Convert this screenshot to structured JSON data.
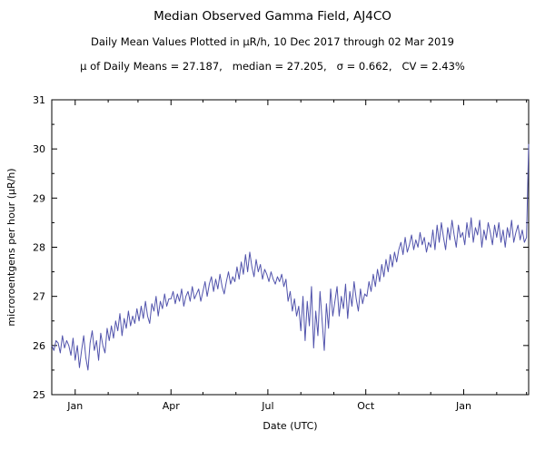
{
  "chart": {
    "title": "Median Observed Gamma Field, AJ4CO",
    "subtitle": "Daily Mean Values Plotted in μR/h, 10 Dec 2017 through 02 Mar 2019",
    "stats": "μ of Daily Means = 27.187,   median = 27.205,   σ = 0.662,   CV = 2.43%"
  },
  "chart_data": {
    "type": "line",
    "title": "Median Observed Gamma Field, AJ4CO",
    "subtitle": "Daily Mean Values Plotted in μR/h, 10 Dec 2017 through 02 Mar 2019",
    "stats_line": "μ of Daily Means = 27.187,   median = 27.205,   σ = 0.662,   CV = 2.43%",
    "mean": 27.187,
    "median": 27.205,
    "sigma": 0.662,
    "cv_percent": 2.43,
    "xlabel": "Date (UTC)",
    "ylabel": "microroentgens per hour (μR/h)",
    "ylim": [
      25,
      31
    ],
    "y_ticks": [
      25,
      26,
      27,
      28,
      29,
      30,
      31
    ],
    "x_start": "10 Dec 2017",
    "x_end": "02 Mar 2019",
    "total_days": 448,
    "sample_interval_days": 2,
    "x_major_ticks": [
      {
        "label": "Jan",
        "day": 22
      },
      {
        "label": "Apr",
        "day": 112
      },
      {
        "label": "Jul",
        "day": 203
      },
      {
        "label": "Oct",
        "day": 295
      },
      {
        "label": "Jan",
        "day": 387
      }
    ],
    "x_minor_tick_days": [
      53,
      81,
      142,
      173,
      234,
      265,
      326,
      356,
      418,
      446
    ],
    "line_color": "#5153ac",
    "grid": false,
    "legend": "none",
    "values": [
      26.0,
      25.9,
      26.1,
      26.05,
      25.85,
      26.2,
      25.95,
      26.1,
      26.0,
      25.8,
      26.15,
      25.7,
      26.0,
      25.55,
      25.9,
      26.2,
      25.75,
      25.5,
      26.05,
      26.3,
      25.9,
      26.1,
      25.7,
      26.25,
      26.0,
      25.85,
      26.35,
      26.1,
      26.4,
      26.15,
      26.5,
      26.3,
      26.65,
      26.2,
      26.55,
      26.35,
      26.7,
      26.4,
      26.6,
      26.45,
      26.75,
      26.5,
      26.8,
      26.55,
      26.9,
      26.6,
      26.45,
      26.85,
      26.7,
      27.0,
      26.6,
      26.9,
      26.75,
      27.05,
      26.8,
      26.95,
      26.95,
      27.1,
      26.85,
      27.05,
      26.9,
      27.15,
      26.8,
      27.0,
      27.1,
      26.9,
      27.2,
      26.95,
      27.05,
      27.15,
      26.9,
      27.1,
      27.3,
      27.0,
      27.25,
      27.4,
      27.1,
      27.35,
      27.15,
      27.45,
      27.2,
      27.05,
      27.3,
      27.5,
      27.25,
      27.4,
      27.3,
      27.6,
      27.35,
      27.7,
      27.45,
      27.85,
      27.5,
      27.9,
      27.6,
      27.4,
      27.75,
      27.5,
      27.65,
      27.35,
      27.55,
      27.45,
      27.3,
      27.5,
      27.35,
      27.25,
      27.4,
      27.3,
      27.45,
      27.2,
      27.35,
      26.9,
      27.1,
      26.7,
      26.95,
      26.6,
      26.8,
      26.3,
      27.0,
      26.1,
      26.9,
      26.4,
      27.2,
      25.95,
      26.7,
      26.2,
      27.1,
      26.5,
      25.9,
      26.85,
      26.35,
      27.15,
      26.6,
      26.9,
      27.2,
      26.6,
      27.0,
      26.75,
      27.25,
      26.55,
      27.1,
      26.8,
      27.3,
      26.95,
      26.7,
      27.15,
      26.85,
      27.05,
      27.0,
      27.3,
      27.1,
      27.45,
      27.2,
      27.55,
      27.3,
      27.65,
      27.4,
      27.75,
      27.5,
      27.85,
      27.6,
      27.9,
      27.7,
      27.95,
      28.1,
      27.85,
      28.2,
      27.9,
      28.05,
      28.25,
      27.95,
      28.15,
      28.0,
      28.3,
      28.05,
      28.2,
      27.9,
      28.1,
      28.0,
      28.35,
      27.95,
      28.45,
      28.1,
      28.5,
      28.2,
      27.95,
      28.4,
      28.15,
      28.55,
      28.25,
      28.0,
      28.45,
      28.2,
      28.3,
      28.05,
      28.5,
      28.2,
      28.6,
      28.1,
      28.4,
      28.25,
      28.55,
      28.0,
      28.35,
      28.15,
      28.5,
      28.3,
      28.05,
      28.45,
      28.2,
      28.5,
      28.1,
      28.35,
      28.0,
      28.4,
      28.2,
      28.55,
      28.1,
      28.3,
      28.45,
      28.15,
      28.35,
      28.1,
      28.2,
      30.1
    ]
  }
}
